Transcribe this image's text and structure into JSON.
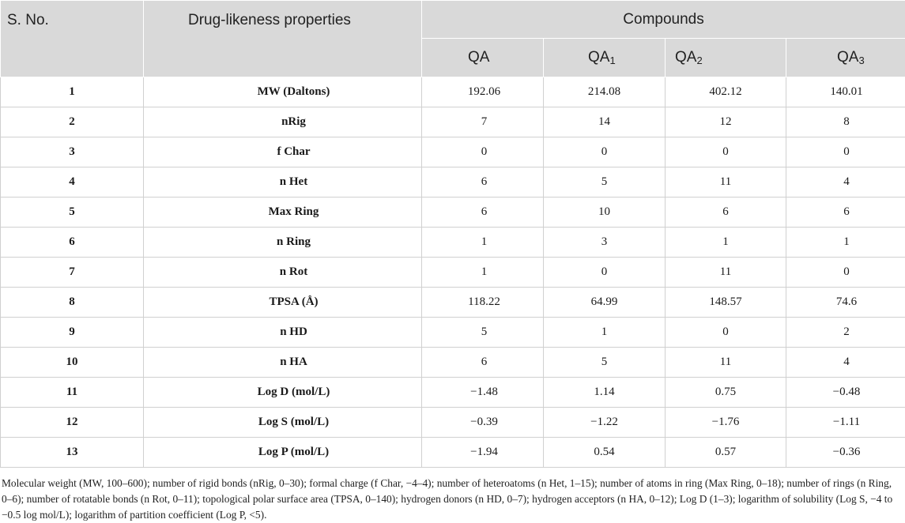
{
  "header": {
    "sno": "S. No.",
    "property": "Drug-likeness properties",
    "group": "Compounds",
    "compounds": [
      {
        "base": "QA",
        "sub": ""
      },
      {
        "base": "QA",
        "sub": "1"
      },
      {
        "base": "QA",
        "sub": "2"
      },
      {
        "base": "QA",
        "sub": "3"
      }
    ]
  },
  "rows": [
    {
      "sno": "1",
      "property": "MW (Daltons)",
      "values": [
        "192.06",
        "214.08",
        "402.12",
        "140.01"
      ]
    },
    {
      "sno": "2",
      "property": "nRig",
      "values": [
        "7",
        "14",
        "12",
        "8"
      ]
    },
    {
      "sno": "3",
      "property": "f Char",
      "values": [
        "0",
        "0",
        "0",
        "0"
      ]
    },
    {
      "sno": "4",
      "property": "n Het",
      "values": [
        "6",
        "5",
        "11",
        "4"
      ]
    },
    {
      "sno": "5",
      "property": "Max Ring",
      "values": [
        "6",
        "10",
        "6",
        "6"
      ]
    },
    {
      "sno": "6",
      "property": "n Ring",
      "values": [
        "1",
        "3",
        "1",
        "1"
      ]
    },
    {
      "sno": "7",
      "property": "n Rot",
      "values": [
        "1",
        "0",
        "11",
        "0"
      ]
    },
    {
      "sno": "8",
      "property": "TPSA (Å)",
      "values": [
        "118.22",
        "64.99",
        "148.57",
        "74.6"
      ]
    },
    {
      "sno": "9",
      "property": "n HD",
      "values": [
        "5",
        "1",
        "0",
        "2"
      ]
    },
    {
      "sno": "10",
      "property": "n HA",
      "values": [
        "6",
        "5",
        "11",
        "4"
      ]
    },
    {
      "sno": "11",
      "property": "Log D (mol/L)",
      "values": [
        "−1.48",
        "1.14",
        "0.75",
        "−0.48"
      ]
    },
    {
      "sno": "12",
      "property": "Log S (mol/L)",
      "values": [
        "−0.39",
        "−1.22",
        "−1.76",
        "−1.11"
      ]
    },
    {
      "sno": "13",
      "property": "Log P (mol/L)",
      "values": [
        "−1.94",
        "0.54",
        "0.57",
        "−0.36"
      ]
    }
  ],
  "footnote": "Molecular weight (MW, 100–600); number of rigid bonds (nRig, 0–30); formal charge (f Char, −4–4); number of heteroatoms (n Het, 1–15); number of atoms in ring (Max Ring, 0–18); number of rings (n Ring, 0–6); number of rotatable bonds (n Rot, 0–11); topological polar surface area (TPSA, 0–140); hydrogen donors (n HD, 0–7); hydrogen acceptors (n HA, 0–12); Log D (1–3); logarithm of solubility (Log S, −4 to −0.5 log mol/L); logarithm of partition coefficient (Log P, <5)."
}
